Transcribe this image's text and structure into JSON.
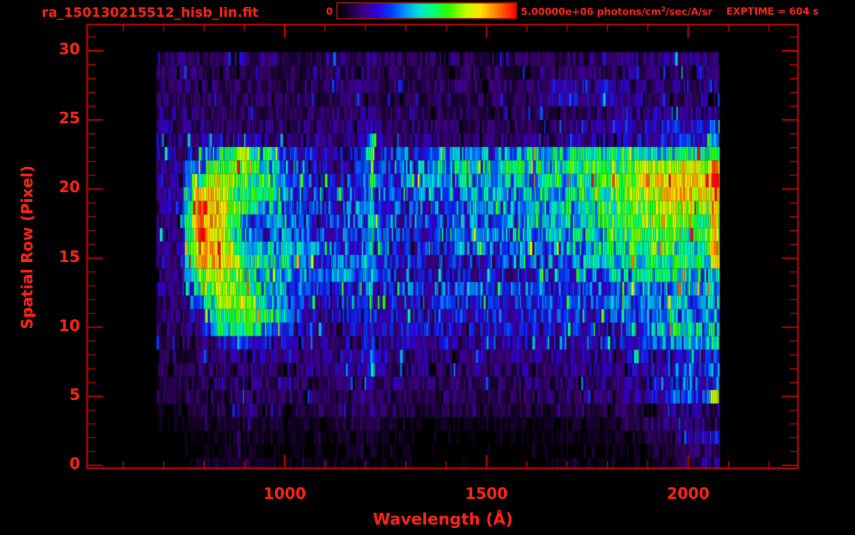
{
  "header": {
    "filename": "ra_150130215512_hisb_lin.fit",
    "colorbar": {
      "min_label": "0",
      "max_label_prefix": "5.00000e+06 photons/cm",
      "max_label_sup": "2",
      "max_label_suffix": "/sec/A/sr"
    },
    "exptime_label": "EXPTIME = 604 s"
  },
  "colors": {
    "text": "#ff2212",
    "axis": "#d40000",
    "colorbar_border": "#8a1a00",
    "background": "#000000"
  },
  "chart_data": {
    "type": "heatmap",
    "title": "ra_150130215512_hisb_lin.fit",
    "xlabel": "Wavelength (Å)",
    "ylabel": "Spatial Row (Pixel)",
    "x_range": [
      510,
      2272
    ],
    "x_ticks": [
      1000,
      1500,
      2000
    ],
    "x_minor_step": 100,
    "y_range": [
      0,
      32
    ],
    "y_ticks": [
      0,
      5,
      10,
      15,
      20,
      25,
      30
    ],
    "y_minor_step": 1,
    "colorbar": {
      "min_value": 0,
      "max_value": 5000000,
      "units": "photons/cm^2/sec/A/sr"
    },
    "data_lambda_range": [
      682,
      2078
    ],
    "grid_columns_angstrom": [
      690,
      740,
      790,
      840,
      890,
      940,
      990,
      1040,
      1090,
      1140,
      1190,
      1240,
      1290,
      1340,
      1390,
      1440,
      1490,
      1540,
      1590,
      1640,
      1690,
      1740,
      1790,
      1840,
      1890,
      1940,
      1990,
      2040
    ],
    "intensity_grid_rows_0_to_30": [
      [
        1,
        2,
        4,
        6,
        7,
        5,
        3,
        3,
        3,
        3,
        4,
        3,
        3,
        2,
        2,
        2,
        2,
        2,
        2,
        2,
        3,
        3,
        3,
        3,
        4,
        6,
        9,
        14
      ],
      [
        1,
        2,
        3,
        4,
        5,
        4,
        3,
        3,
        3,
        4,
        5,
        4,
        3,
        2,
        2,
        2,
        2,
        2,
        2,
        3,
        3,
        3,
        3,
        4,
        4,
        6,
        8,
        12
      ],
      [
        2,
        2,
        3,
        5,
        6,
        5,
        4,
        4,
        4,
        5,
        6,
        5,
        4,
        3,
        3,
        3,
        3,
        3,
        3,
        3,
        4,
        4,
        4,
        5,
        8,
        10,
        14,
        22
      ],
      [
        2,
        3,
        4,
        6,
        6,
        6,
        5,
        5,
        5,
        6,
        7,
        6,
        5,
        4,
        4,
        4,
        4,
        4,
        4,
        4,
        5,
        5,
        5,
        8,
        10,
        12,
        16,
        14
      ],
      [
        4,
        5,
        7,
        9,
        9,
        9,
        8,
        8,
        8,
        9,
        10,
        9,
        8,
        8,
        8,
        8,
        8,
        8,
        8,
        8,
        8,
        9,
        9,
        9,
        10,
        12,
        14,
        12
      ],
      [
        7,
        8,
        9,
        11,
        12,
        11,
        10,
        10,
        10,
        12,
        14,
        12,
        11,
        10,
        10,
        10,
        10,
        10,
        11,
        11,
        11,
        12,
        12,
        13,
        16,
        22,
        32,
        30
      ],
      [
        8,
        9,
        10,
        12,
        13,
        12,
        11,
        11,
        11,
        13,
        16,
        14,
        13,
        12,
        12,
        12,
        12,
        12,
        12,
        13,
        13,
        13,
        14,
        14,
        15,
        20,
        30,
        28
      ],
      [
        9,
        9,
        11,
        13,
        14,
        13,
        12,
        12,
        12,
        14,
        17,
        15,
        14,
        13,
        13,
        13,
        13,
        13,
        14,
        14,
        14,
        15,
        15,
        16,
        18,
        24,
        32,
        30
      ],
      [
        9,
        10,
        12,
        15,
        16,
        15,
        14,
        13,
        13,
        15,
        20,
        17,
        16,
        14,
        14,
        14,
        15,
        15,
        15,
        16,
        16,
        16,
        17,
        18,
        19,
        22,
        26,
        24
      ],
      [
        10,
        10,
        12,
        20,
        25,
        22,
        18,
        15,
        14,
        16,
        22,
        18,
        17,
        16,
        16,
        16,
        16,
        17,
        17,
        18,
        18,
        18,
        19,
        22,
        26,
        38,
        44,
        40
      ],
      [
        11,
        11,
        17,
        45,
        55,
        50,
        35,
        20,
        16,
        18,
        22,
        20,
        20,
        20,
        20,
        20,
        21,
        21,
        22,
        22,
        22,
        23,
        23,
        24,
        34,
        45,
        52,
        46
      ],
      [
        12,
        12,
        24,
        55,
        62,
        55,
        45,
        25,
        18,
        20,
        24,
        22,
        22,
        22,
        22,
        23,
        23,
        24,
        24,
        24,
        25,
        25,
        25,
        26,
        30,
        36,
        42,
        36
      ],
      [
        13,
        12,
        38,
        68,
        72,
        60,
        42,
        28,
        20,
        22,
        26,
        24,
        24,
        24,
        24,
        25,
        25,
        26,
        26,
        26,
        26,
        27,
        27,
        28,
        32,
        38,
        44,
        38
      ],
      [
        14,
        13,
        52,
        72,
        60,
        52,
        40,
        30,
        22,
        24,
        30,
        27,
        28,
        28,
        28,
        30,
        30,
        30,
        30,
        30,
        30,
        31,
        31,
        30,
        36,
        42,
        46,
        40
      ],
      [
        15,
        14,
        68,
        76,
        60,
        50,
        42,
        35,
        28,
        30,
        36,
        30,
        18,
        19,
        20,
        21,
        22,
        23,
        24,
        26,
        28,
        31,
        35,
        42,
        46,
        50,
        46,
        38
      ],
      [
        16,
        15,
        90,
        80,
        66,
        55,
        48,
        38,
        30,
        32,
        36,
        32,
        22,
        23,
        24,
        26,
        28,
        29,
        31,
        33,
        35,
        38,
        42,
        48,
        52,
        56,
        54,
        46
      ],
      [
        16,
        15,
        92,
        82,
        60,
        40,
        45,
        35,
        28,
        30,
        34,
        30,
        22,
        24,
        26,
        28,
        30,
        31,
        33,
        35,
        38,
        41,
        45,
        52,
        55,
        58,
        58,
        52
      ],
      [
        17,
        16,
        95,
        80,
        48,
        28,
        42,
        34,
        26,
        29,
        35,
        31,
        24,
        26,
        28,
        30,
        32,
        34,
        36,
        38,
        41,
        44,
        48,
        54,
        58,
        62,
        63,
        56
      ],
      [
        17,
        16,
        95,
        80,
        46,
        30,
        40,
        32,
        26,
        29,
        35,
        31,
        26,
        28,
        30,
        32,
        34,
        36,
        38,
        41,
        44,
        47,
        50,
        56,
        61,
        66,
        68,
        62
      ],
      [
        18,
        17,
        95,
        78,
        58,
        48,
        42,
        30,
        25,
        28,
        34,
        30,
        26,
        28,
        30,
        33,
        36,
        38,
        40,
        43,
        45,
        48,
        52,
        60,
        66,
        72,
        76,
        70
      ],
      [
        18,
        17,
        86,
        76,
        56,
        50,
        45,
        30,
        24,
        27,
        32,
        28,
        28,
        30,
        32,
        35,
        38,
        40,
        42,
        45,
        47,
        50,
        54,
        64,
        71,
        78,
        84,
        78
      ],
      [
        18,
        16,
        55,
        80,
        63,
        58,
        42,
        28,
        22,
        24,
        28,
        26,
        30,
        33,
        36,
        40,
        42,
        44,
        46,
        48,
        50,
        54,
        58,
        66,
        73,
        80,
        86,
        80
      ],
      [
        18,
        16,
        40,
        70,
        62,
        55,
        40,
        26,
        20,
        21,
        24,
        24,
        32,
        36,
        40,
        44,
        46,
        48,
        50,
        52,
        53,
        56,
        60,
        64,
        70,
        76,
        80,
        74
      ],
      [
        18,
        17,
        22,
        52,
        64,
        50,
        32,
        20,
        18,
        18,
        20,
        20,
        30,
        32,
        34,
        36,
        38,
        40,
        42,
        44,
        46,
        48,
        48,
        50,
        52,
        54,
        55,
        52
      ],
      [
        17,
        16,
        15,
        20,
        22,
        16,
        14,
        13,
        13,
        14,
        16,
        15,
        14,
        13,
        13,
        13,
        13,
        13,
        13,
        14,
        15,
        16,
        16,
        17,
        19,
        23,
        27,
        26
      ],
      [
        15,
        14,
        13,
        12,
        11,
        11,
        11,
        11,
        12,
        13,
        15,
        14,
        12,
        11,
        11,
        11,
        11,
        11,
        11,
        12,
        13,
        14,
        14,
        15,
        17,
        20,
        23,
        22
      ],
      [
        14,
        13,
        12,
        11,
        10,
        10,
        10,
        10,
        11,
        12,
        13,
        12,
        11,
        10,
        10,
        10,
        10,
        10,
        10,
        11,
        12,
        13,
        13,
        14,
        15,
        16,
        17,
        15
      ],
      [
        13,
        12,
        11,
        10,
        10,
        10,
        10,
        10,
        10,
        11,
        12,
        11,
        10,
        10,
        10,
        10,
        10,
        10,
        11,
        15,
        22,
        24,
        21,
        16,
        13,
        12,
        12,
        11
      ],
      [
        14,
        13,
        12,
        11,
        10,
        10,
        10,
        10,
        10,
        11,
        12,
        11,
        10,
        10,
        10,
        10,
        10,
        10,
        11,
        14,
        20,
        22,
        20,
        16,
        13,
        13,
        13,
        12
      ],
      [
        13,
        12,
        11,
        10,
        9,
        9,
        9,
        9,
        10,
        11,
        12,
        11,
        10,
        9,
        9,
        9,
        9,
        9,
        9,
        10,
        10,
        11,
        12,
        12,
        13,
        14,
        14,
        13
      ],
      [
        14,
        13,
        11,
        10,
        10,
        10,
        10,
        10,
        11,
        12,
        13,
        12,
        11,
        10,
        10,
        9,
        9,
        9,
        10,
        10,
        11,
        12,
        13,
        13,
        14,
        15,
        16,
        14
      ]
    ],
    "emission_line": {
      "center_angstrom": 1216,
      "halfwidth_angstrom": 10,
      "row_intensity_0_to_30": [
        0,
        0,
        0,
        0,
        8,
        18,
        32,
        38,
        42,
        40,
        32,
        34,
        36,
        40,
        44,
        44,
        46,
        52,
        55,
        58,
        58,
        58,
        56,
        52,
        42,
        16,
        0,
        0,
        0,
        0,
        0
      ]
    },
    "edge_strip": {
      "lambda_range": [
        2054,
        2076
      ],
      "row_intensity_0_to_30": [
        12,
        10,
        15,
        12,
        8,
        80,
        15,
        15,
        18,
        20,
        22,
        25,
        28,
        30,
        45,
        75,
        82,
        86,
        88,
        90,
        92,
        93,
        88,
        55,
        30,
        25,
        8,
        0,
        0,
        0,
        0
      ]
    },
    "colormap_stops": [
      [
        0.0,
        0,
        0,
        0
      ],
      [
        0.06,
        26,
        0,
        51
      ],
      [
        0.14,
        64,
        0,
        128
      ],
      [
        0.22,
        48,
        0,
        220
      ],
      [
        0.3,
        0,
        60,
        255
      ],
      [
        0.38,
        0,
        150,
        255
      ],
      [
        0.46,
        0,
        230,
        210
      ],
      [
        0.54,
        0,
        255,
        120
      ],
      [
        0.62,
        40,
        255,
        0
      ],
      [
        0.72,
        190,
        255,
        0
      ],
      [
        0.8,
        255,
        230,
        0
      ],
      [
        0.88,
        255,
        140,
        0
      ],
      [
        1.0,
        255,
        0,
        0
      ]
    ]
  }
}
